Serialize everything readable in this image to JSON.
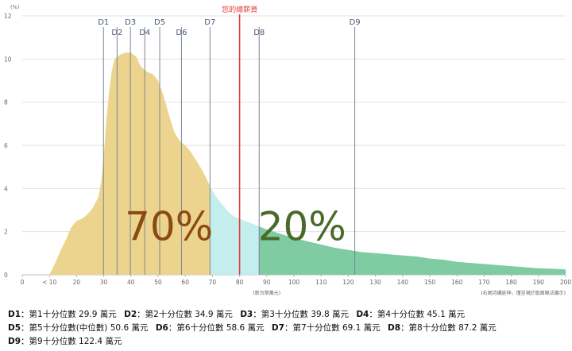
{
  "chart_data": {
    "type": "area",
    "yunit": "(%)",
    "xunit": "(新台幣萬元)",
    "note": "(右尾持續延伸，僅呈現於版面無法顯示)",
    "xlim": [
      0,
      200
    ],
    "ylim": [
      0,
      12
    ],
    "x_ticks": [
      {
        "x": 0,
        "label": "0"
      },
      {
        "x": 10,
        "label": "< 10"
      },
      {
        "x": 20,
        "label": "20"
      },
      {
        "x": 30,
        "label": "30"
      },
      {
        "x": 40,
        "label": "40"
      },
      {
        "x": 50,
        "label": "50"
      },
      {
        "x": 60,
        "label": "60"
      },
      {
        "x": 70,
        "label": "70"
      },
      {
        "x": 80,
        "label": "80"
      },
      {
        "x": 90,
        "label": "90"
      },
      {
        "x": 100,
        "label": "100"
      },
      {
        "x": 110,
        "label": "110"
      },
      {
        "x": 120,
        "label": "120"
      },
      {
        "x": 130,
        "label": "130"
      },
      {
        "x": 140,
        "label": "140"
      },
      {
        "x": 150,
        "label": "150"
      },
      {
        "x": 160,
        "label": "160"
      },
      {
        "x": 170,
        "label": "170"
      },
      {
        "x": 180,
        "label": "180"
      },
      {
        "x": 190,
        "label": "190"
      },
      {
        "x": 200,
        "label": "200"
      }
    ],
    "y_ticks": [
      0,
      2,
      4,
      6,
      8,
      10,
      12
    ],
    "curve": [
      [
        10,
        0
      ],
      [
        12,
        0.5
      ],
      [
        14,
        1.1
      ],
      [
        16,
        1.6
      ],
      [
        18,
        2.2
      ],
      [
        20,
        2.5
      ],
      [
        22,
        2.6
      ],
      [
        24,
        2.8
      ],
      [
        26,
        3.1
      ],
      [
        28,
        3.6
      ],
      [
        29,
        4.3
      ],
      [
        30,
        5.5
      ],
      [
        31,
        7.2
      ],
      [
        32,
        8.5
      ],
      [
        33,
        9.5
      ],
      [
        34,
        10.0
      ],
      [
        36,
        10.2
      ],
      [
        38,
        10.3
      ],
      [
        40,
        10.3
      ],
      [
        42,
        10.1
      ],
      [
        43,
        9.8
      ],
      [
        44,
        9.6
      ],
      [
        46,
        9.4
      ],
      [
        48,
        9.3
      ],
      [
        50,
        9.0
      ],
      [
        52,
        8.3
      ],
      [
        54,
        7.4
      ],
      [
        56,
        6.6
      ],
      [
        58,
        6.2
      ],
      [
        60,
        6.0
      ],
      [
        62,
        5.7
      ],
      [
        64,
        5.3
      ],
      [
        66,
        4.9
      ],
      [
        68,
        4.4
      ],
      [
        70,
        3.9
      ],
      [
        72,
        3.5
      ],
      [
        74,
        3.2
      ],
      [
        76,
        2.9
      ],
      [
        78,
        2.7
      ],
      [
        80,
        2.6
      ],
      [
        82,
        2.5
      ],
      [
        84,
        2.4
      ],
      [
        86,
        2.3
      ],
      [
        88,
        2.2
      ],
      [
        90,
        2.1
      ],
      [
        95,
        1.9
      ],
      [
        100,
        1.7
      ],
      [
        105,
        1.55
      ],
      [
        110,
        1.4
      ],
      [
        115,
        1.25
      ],
      [
        120,
        1.15
      ],
      [
        125,
        1.05
      ],
      [
        130,
        1.0
      ],
      [
        135,
        0.95
      ],
      [
        140,
        0.9
      ],
      [
        145,
        0.85
      ],
      [
        150,
        0.75
      ],
      [
        155,
        0.7
      ],
      [
        160,
        0.6
      ],
      [
        165,
        0.55
      ],
      [
        170,
        0.5
      ],
      [
        175,
        0.45
      ],
      [
        180,
        0.4
      ],
      [
        185,
        0.35
      ],
      [
        190,
        0.3
      ],
      [
        195,
        0.28
      ],
      [
        200,
        0.25
      ]
    ],
    "regions": [
      {
        "from": 10,
        "to": 69.1,
        "color": "#ecd48e"
      },
      {
        "from": 69.1,
        "to": 87.2,
        "color": "#c4eeee"
      },
      {
        "from": 87.2,
        "to": 200,
        "color": "#7fcba2"
      }
    ],
    "deciles": [
      {
        "label": "D1",
        "x": 29.9,
        "row": 1
      },
      {
        "label": "D2",
        "x": 34.9,
        "row": 2
      },
      {
        "label": "D3",
        "x": 39.8,
        "row": 1
      },
      {
        "label": "D4",
        "x": 45.1,
        "row": 2
      },
      {
        "label": "D5",
        "x": 50.6,
        "row": 1
      },
      {
        "label": "D6",
        "x": 58.6,
        "row": 2
      },
      {
        "label": "D7",
        "x": 69.1,
        "row": 1
      },
      {
        "label": "D8",
        "x": 87.2,
        "row": 2
      },
      {
        "label": "D9",
        "x": 122.4,
        "row": 1
      }
    ],
    "marker": {
      "label": "您的總薪資",
      "x": 80,
      "color": "#e23a3a"
    },
    "annotations": [
      {
        "text": "70%",
        "x": 54,
        "y": 1.6,
        "color": "#8a4a10"
      },
      {
        "text": "20%",
        "x": 103,
        "y": 1.6,
        "color": "#4a6a2a"
      }
    ],
    "colors": {
      "decile_line": "#7a8494",
      "decile_label": "#4a5a78",
      "grid": "#e2e2e2",
      "axis_text": "#666666"
    }
  },
  "legend": {
    "rows": [
      [
        {
          "key": "D1",
          "desc": "：第1十分位數 29.9 萬元"
        },
        {
          "key": "D2",
          "desc": "：第2十分位數 34.9 萬元"
        },
        {
          "key": "D3",
          "desc": "：第3十分位數 39.8 萬元"
        },
        {
          "key": "D4",
          "desc": "：第4十分位數 45.1 萬元"
        }
      ],
      [
        {
          "key": "D5",
          "desc": "：第5十分位數(中位數) 50.6 萬元"
        },
        {
          "key": "D6",
          "desc": "：第6十分位數 58.6 萬元"
        },
        {
          "key": "D7",
          "desc": "：第7十分位數 69.1 萬元"
        },
        {
          "key": "D8",
          "desc": "：第8十分位數 87.2 萬元"
        }
      ],
      [
        {
          "key": "D9",
          "desc": "：第9十分位數 122.4 萬元"
        }
      ]
    ]
  }
}
